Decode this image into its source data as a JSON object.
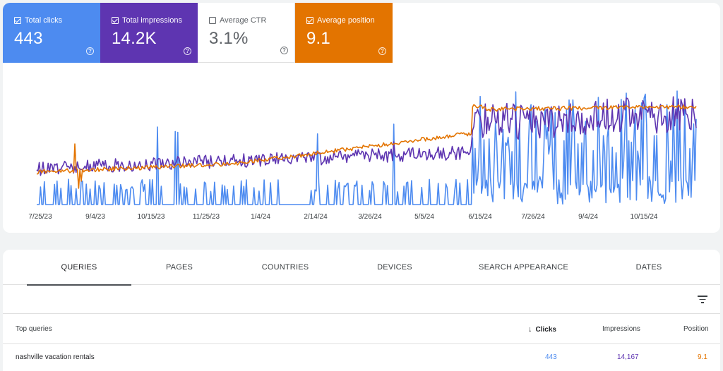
{
  "metrics": [
    {
      "label": "Total clicks",
      "value": "443",
      "checked": true,
      "color": "#4d8bf0"
    },
    {
      "label": "Total impressions",
      "value": "14.2K",
      "checked": true,
      "color": "#5e35b1"
    },
    {
      "label": "Average CTR",
      "value": "3.1%",
      "checked": false,
      "color": "#ffffff"
    },
    {
      "label": "Average position",
      "value": "9.1",
      "checked": true,
      "color": "#e37400"
    }
  ],
  "help_glyph": "?",
  "chart_data": {
    "type": "line",
    "x_ticks": [
      "7/25/23",
      "9/4/23",
      "10/15/23",
      "11/25/23",
      "1/4/24",
      "2/14/24",
      "3/26/24",
      "5/5/24",
      "6/15/24",
      "7/26/24",
      "9/4/24",
      "10/15/24"
    ],
    "series": [
      {
        "name": "Total clicks",
        "color": "#4d8bf0"
      },
      {
        "name": "Total impressions",
        "color": "#5e35b1"
      },
      {
        "name": "Average position",
        "color": "#e37400"
      }
    ],
    "grid": false
  },
  "tabs": [
    "QUERIES",
    "PAGES",
    "COUNTRIES",
    "DEVICES",
    "SEARCH APPEARANCE",
    "DATES"
  ],
  "active_tab": "QUERIES",
  "table": {
    "headers": {
      "query": "Top queries",
      "clicks": "Clicks",
      "impressions": "Impressions",
      "position": "Position"
    },
    "sort_glyph": "↓",
    "rows": [
      {
        "query": "nashville vacation rentals",
        "clicks": "443",
        "impressions": "14,167",
        "position": "9.1"
      }
    ],
    "colors": {
      "clicks": "#4d8bf0",
      "impressions": "#5e35b1",
      "position": "#e37400"
    }
  }
}
